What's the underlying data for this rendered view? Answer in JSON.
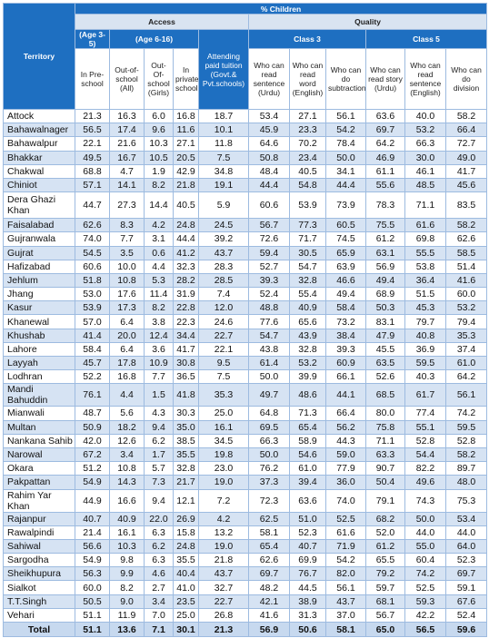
{
  "header": {
    "title": "% Children",
    "access": "Access",
    "quality": "Quality",
    "territory": "Territory",
    "age_3_5": "(Age 3-5)",
    "age_6_16": "(Age 6-16)",
    "tuition": "Attending paid tuition (Govt.& Pvt.schools)",
    "class3": "Class 3",
    "class5": "Class 5",
    "columns": [
      "In Pre-school",
      "Out-of-school (All)",
      "Out-Of-school (Girls)",
      "In private school",
      "Who can read sentence (Urdu)",
      "Who can read word (English)",
      "Who can do subtraction",
      "Who can read story (Urdu)",
      "Who can read sentence (English)",
      "Who can do division"
    ]
  },
  "rows": [
    {
      "territory": "Attock",
      "values": [
        "21.3",
        "16.3",
        "6.0",
        "16.8",
        "18.7",
        "53.4",
        "27.1",
        "56.1",
        "63.6",
        "40.0",
        "58.2"
      ]
    },
    {
      "territory": "Bahawalnager",
      "values": [
        "56.5",
        "17.4",
        "9.6",
        "11.6",
        "10.1",
        "45.9",
        "23.3",
        "54.2",
        "69.7",
        "53.2",
        "66.4"
      ]
    },
    {
      "territory": "Bahawalpur",
      "values": [
        "22.1",
        "21.6",
        "10.3",
        "27.1",
        "11.8",
        "64.6",
        "70.2",
        "78.4",
        "64.2",
        "66.3",
        "72.7"
      ]
    },
    {
      "territory": "Bhakkar",
      "values": [
        "49.5",
        "16.7",
        "10.5",
        "20.5",
        "7.5",
        "50.8",
        "23.4",
        "50.0",
        "46.9",
        "30.0",
        "49.0"
      ]
    },
    {
      "territory": "Chakwal",
      "values": [
        "68.8",
        "4.7",
        "1.9",
        "42.9",
        "34.8",
        "48.4",
        "40.5",
        "34.1",
        "61.1",
        "46.1",
        "41.7"
      ]
    },
    {
      "territory": "Chiniot",
      "values": [
        "57.1",
        "14.1",
        "8.2",
        "21.8",
        "19.1",
        "44.4",
        "54.8",
        "44.4",
        "55.6",
        "48.5",
        "45.6"
      ]
    },
    {
      "territory": "Dera Ghazi Khan",
      "values": [
        "44.7",
        "27.3",
        "14.4",
        "40.5",
        "5.9",
        "60.6",
        "53.9",
        "73.9",
        "78.3",
        "71.1",
        "83.5"
      ]
    },
    {
      "territory": "Faisalabad",
      "values": [
        "62.6",
        "8.3",
        "4.2",
        "24.8",
        "24.5",
        "56.7",
        "77.3",
        "60.5",
        "75.5",
        "61.6",
        "58.2"
      ]
    },
    {
      "territory": "Gujranwala",
      "values": [
        "74.0",
        "7.7",
        "3.1",
        "44.4",
        "39.2",
        "72.6",
        "71.7",
        "74.5",
        "61.2",
        "69.8",
        "62.6"
      ]
    },
    {
      "territory": "Gujrat",
      "values": [
        "54.5",
        "3.5",
        "0.6",
        "41.2",
        "43.7",
        "59.4",
        "30.5",
        "65.9",
        "63.1",
        "55.5",
        "58.5"
      ]
    },
    {
      "territory": "Hafizabad",
      "values": [
        "60.6",
        "10.0",
        "4.4",
        "32.3",
        "28.3",
        "52.7",
        "54.7",
        "63.9",
        "56.9",
        "53.8",
        "51.4"
      ]
    },
    {
      "territory": "Jehlum",
      "values": [
        "51.8",
        "10.8",
        "5.3",
        "28.2",
        "28.5",
        "39.3",
        "32.8",
        "46.6",
        "49.4",
        "36.4",
        "41.6"
      ]
    },
    {
      "territory": "Jhang",
      "values": [
        "53.0",
        "17.6",
        "11.4",
        "31.9",
        "7.4",
        "52.4",
        "55.4",
        "49.4",
        "68.9",
        "51.5",
        "60.0"
      ]
    },
    {
      "territory": "Kasur",
      "values": [
        "53.9",
        "17.3",
        "8.2",
        "22.8",
        "12.0",
        "48.8",
        "40.9",
        "58.4",
        "50.3",
        "45.3",
        "53.2"
      ]
    },
    {
      "territory": "Khanewal",
      "values": [
        "57.0",
        "6.4",
        "3.8",
        "22.3",
        "24.6",
        "77.6",
        "65.6",
        "73.2",
        "83.1",
        "79.7",
        "79.4"
      ]
    },
    {
      "territory": "Khushab",
      "values": [
        "41.4",
        "20.0",
        "12.4",
        "34.4",
        "22.7",
        "54.7",
        "43.9",
        "38.4",
        "47.9",
        "40.8",
        "35.3"
      ]
    },
    {
      "territory": "Lahore",
      "values": [
        "58.4",
        "6.4",
        "3.6",
        "41.7",
        "22.1",
        "43.8",
        "32.8",
        "39.3",
        "45.5",
        "36.9",
        "37.4"
      ]
    },
    {
      "territory": "Layyah",
      "values": [
        "45.7",
        "17.8",
        "10.9",
        "30.8",
        "9.5",
        "61.4",
        "53.2",
        "60.9",
        "63.5",
        "59.5",
        "61.0"
      ]
    },
    {
      "territory": "Lodhran",
      "values": [
        "52.2",
        "16.8",
        "7.7",
        "36.5",
        "7.5",
        "50.0",
        "39.9",
        "66.1",
        "52.6",
        "40.3",
        "64.2"
      ]
    },
    {
      "territory": "Mandi Bahuddin",
      "values": [
        "76.1",
        "4.4",
        "1.5",
        "41.8",
        "35.3",
        "49.7",
        "48.6",
        "44.1",
        "68.5",
        "61.7",
        "56.1"
      ]
    },
    {
      "territory": "Mianwali",
      "values": [
        "48.7",
        "5.6",
        "4.3",
        "30.3",
        "25.0",
        "64.8",
        "71.3",
        "66.4",
        "80.0",
        "77.4",
        "74.2"
      ]
    },
    {
      "territory": "Multan",
      "values": [
        "50.9",
        "18.2",
        "9.4",
        "35.0",
        "16.1",
        "69.5",
        "65.4",
        "56.2",
        "75.8",
        "55.1",
        "59.5"
      ]
    },
    {
      "territory": "Nankana Sahib",
      "values": [
        "42.0",
        "12.6",
        "6.2",
        "38.5",
        "34.5",
        "66.3",
        "58.9",
        "44.3",
        "71.1",
        "52.8",
        "52.8"
      ]
    },
    {
      "territory": "Narowal",
      "values": [
        "67.2",
        "3.4",
        "1.7",
        "35.5",
        "19.8",
        "50.0",
        "54.6",
        "59.0",
        "63.3",
        "54.4",
        "58.2"
      ]
    },
    {
      "territory": "Okara",
      "values": [
        "51.2",
        "10.8",
        "5.7",
        "32.8",
        "23.0",
        "76.2",
        "61.0",
        "77.9",
        "90.7",
        "82.2",
        "89.7"
      ]
    },
    {
      "territory": "Pakpattan",
      "values": [
        "54.9",
        "14.3",
        "7.3",
        "21.7",
        "19.0",
        "37.3",
        "39.4",
        "36.0",
        "50.4",
        "49.6",
        "48.0"
      ]
    },
    {
      "territory": "Rahim Yar Khan",
      "values": [
        "44.9",
        "16.6",
        "9.4",
        "12.1",
        "7.2",
        "72.3",
        "63.6",
        "74.0",
        "79.1",
        "74.3",
        "75.3"
      ]
    },
    {
      "territory": "Rajanpur",
      "values": [
        "40.7",
        "40.9",
        "22.0",
        "26.9",
        "4.2",
        "62.5",
        "51.0",
        "52.5",
        "68.2",
        "50.0",
        "53.4"
      ]
    },
    {
      "territory": "Rawalpindi",
      "values": [
        "21.4",
        "16.1",
        "6.3",
        "15.8",
        "13.2",
        "58.1",
        "52.3",
        "61.6",
        "52.0",
        "44.0",
        "44.0"
      ]
    },
    {
      "territory": "Sahiwal",
      "values": [
        "56.6",
        "10.3",
        "6.2",
        "24.8",
        "19.0",
        "65.4",
        "40.7",
        "71.9",
        "61.2",
        "55.0",
        "64.0"
      ]
    },
    {
      "territory": "Sargodha",
      "values": [
        "54.9",
        "9.8",
        "6.3",
        "35.5",
        "21.8",
        "62.6",
        "69.9",
        "54.2",
        "65.5",
        "60.4",
        "52.3"
      ]
    },
    {
      "territory": "Sheikhupura",
      "values": [
        "56.3",
        "9.9",
        "4.6",
        "40.4",
        "43.7",
        "69.7",
        "76.7",
        "82.0",
        "79.2",
        "74.2",
        "69.7"
      ]
    },
    {
      "territory": "Sialkot",
      "values": [
        "60.0",
        "8.2",
        "2.7",
        "41.0",
        "32.7",
        "48.2",
        "44.5",
        "56.1",
        "59.7",
        "52.5",
        "59.1"
      ]
    },
    {
      "territory": "T.T.Singh",
      "values": [
        "50.5",
        "9.0",
        "3.4",
        "23.5",
        "22.7",
        "42.1",
        "38.9",
        "43.7",
        "68.1",
        "59.3",
        "67.6"
      ]
    },
    {
      "territory": "Vehari",
      "values": [
        "51.1",
        "11.9",
        "7.0",
        "25.0",
        "26.8",
        "41.6",
        "31.3",
        "37.0",
        "56.7",
        "42.2",
        "52.4"
      ]
    }
  ],
  "total": {
    "label": "Total",
    "values": [
      "51.1",
      "13.6",
      "7.1",
      "30.1",
      "21.3",
      "56.9",
      "50.6",
      "58.1",
      "65.0",
      "56.5",
      "59.6"
    ]
  }
}
